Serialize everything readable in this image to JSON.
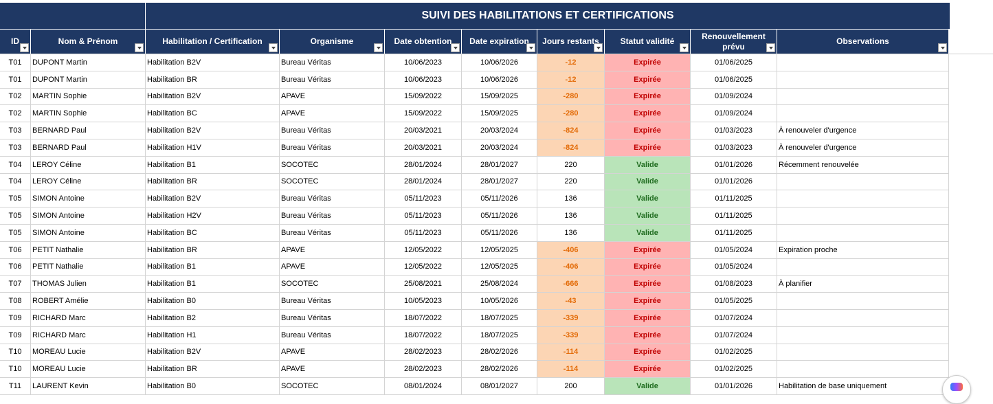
{
  "sheet": {
    "title": "SUIVI DES HABILITATIONS ET CERTIFICATIONS",
    "columns": [
      {
        "label": "ID"
      },
      {
        "label": "Nom & Prénom"
      },
      {
        "label": "Habilitation / Certification"
      },
      {
        "label": "Organisme"
      },
      {
        "label": "Date obtention"
      },
      {
        "label": "Date expiration"
      },
      {
        "label": "Jours restants"
      },
      {
        "label": "Statut validité"
      },
      {
        "label": "Renouvellement prévu"
      },
      {
        "label": "Observations"
      }
    ],
    "rows": [
      [
        "T01",
        "DUPONT Martin",
        "Habilitation B2V",
        "Bureau Véritas",
        "10/06/2023",
        "10/06/2026",
        "-12",
        "Expirée",
        "01/06/2025",
        ""
      ],
      [
        "T01",
        "DUPONT Martin",
        "Habilitation BR",
        "Bureau Véritas",
        "10/06/2023",
        "10/06/2026",
        "-12",
        "Expirée",
        "01/06/2025",
        ""
      ],
      [
        "T02",
        "MARTIN Sophie",
        "Habilitation B2V",
        "APAVE",
        "15/09/2022",
        "15/09/2025",
        "-280",
        "Expirée",
        "01/09/2024",
        ""
      ],
      [
        "T02",
        "MARTIN Sophie",
        "Habilitation BC",
        "APAVE",
        "15/09/2022",
        "15/09/2025",
        "-280",
        "Expirée",
        "01/09/2024",
        ""
      ],
      [
        "T03",
        "BERNARD Paul",
        "Habilitation B2V",
        "Bureau Véritas",
        "20/03/2021",
        "20/03/2024",
        "-824",
        "Expirée",
        "01/03/2023",
        "À renouveler d'urgence"
      ],
      [
        "T03",
        "BERNARD Paul",
        "Habilitation H1V",
        "Bureau Véritas",
        "20/03/2021",
        "20/03/2024",
        "-824",
        "Expirée",
        "01/03/2023",
        "À renouveler d'urgence"
      ],
      [
        "T04",
        "LEROY Céline",
        "Habilitation B1",
        "SOCOTEC",
        "28/01/2024",
        "28/01/2027",
        "220",
        "Valide",
        "01/01/2026",
        "Récemment renouvelée"
      ],
      [
        "T04",
        "LEROY Céline",
        "Habilitation BR",
        "SOCOTEC",
        "28/01/2024",
        "28/01/2027",
        "220",
        "Valide",
        "01/01/2026",
        ""
      ],
      [
        "T05",
        "SIMON Antoine",
        "Habilitation B2V",
        "Bureau Véritas",
        "05/11/2023",
        "05/11/2026",
        "136",
        "Valide",
        "01/11/2025",
        ""
      ],
      [
        "T05",
        "SIMON Antoine",
        "Habilitation H2V",
        "Bureau Véritas",
        "05/11/2023",
        "05/11/2026",
        "136",
        "Valide",
        "01/11/2025",
        ""
      ],
      [
        "T05",
        "SIMON Antoine",
        "Habilitation BC",
        "Bureau Véritas",
        "05/11/2023",
        "05/11/2026",
        "136",
        "Valide",
        "01/11/2025",
        ""
      ],
      [
        "T06",
        "PETIT Nathalie",
        "Habilitation BR",
        "APAVE",
        "12/05/2022",
        "12/05/2025",
        "-406",
        "Expirée",
        "01/05/2024",
        "Expiration proche"
      ],
      [
        "T06",
        "PETIT Nathalie",
        "Habilitation B1",
        "APAVE",
        "12/05/2022",
        "12/05/2025",
        "-406",
        "Expirée",
        "01/05/2024",
        ""
      ],
      [
        "T07",
        "THOMAS Julien",
        "Habilitation B1",
        "SOCOTEC",
        "25/08/2021",
        "25/08/2024",
        "-666",
        "Expirée",
        "01/08/2023",
        "À planifier"
      ],
      [
        "T08",
        "ROBERT Amélie",
        "Habilitation B0",
        "Bureau Véritas",
        "10/05/2023",
        "10/05/2026",
        "-43",
        "Expirée",
        "01/05/2025",
        ""
      ],
      [
        "T09",
        "RICHARD Marc",
        "Habilitation B2",
        "Bureau Véritas",
        "18/07/2022",
        "18/07/2025",
        "-339",
        "Expirée",
        "01/07/2024",
        ""
      ],
      [
        "T09",
        "RICHARD Marc",
        "Habilitation H1",
        "Bureau Véritas",
        "18/07/2022",
        "18/07/2025",
        "-339",
        "Expirée",
        "01/07/2024",
        ""
      ],
      [
        "T10",
        "MOREAU Lucie",
        "Habilitation B2V",
        "APAVE",
        "28/02/2023",
        "28/02/2026",
        "-114",
        "Expirée",
        "01/02/2025",
        ""
      ],
      [
        "T10",
        "MOREAU Lucie",
        "Habilitation BR",
        "APAVE",
        "28/02/2023",
        "28/02/2026",
        "-114",
        "Expirée",
        "01/02/2025",
        ""
      ],
      [
        "T11",
        "LAURENT Kevin",
        "Habilitation B0",
        "SOCOTEC",
        "08/01/2024",
        "08/01/2027",
        "200",
        "Valide",
        "01/01/2026",
        "Habilitation de base uniquement"
      ]
    ]
  },
  "colors": {
    "header_bg": "#1f3864",
    "expired_bg": "#ffb3b3",
    "expired_text": "#c00000",
    "valid_bg": "#b9e4b9",
    "negative_days_bg": "#fcd5b4",
    "negative_days_text": "#e36c09"
  },
  "icons": {
    "filter": "filter-dropdown-icon",
    "assistant": "copilot-icon"
  }
}
